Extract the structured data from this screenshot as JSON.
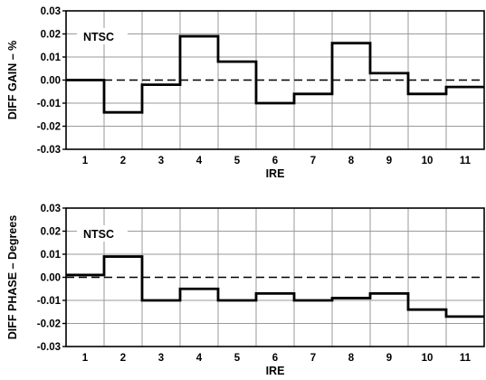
{
  "chart_data": [
    {
      "type": "line",
      "step": true,
      "x": [
        "1",
        "2",
        "3",
        "4",
        "5",
        "6",
        "7",
        "8",
        "9",
        "10",
        "11"
      ],
      "series": [
        {
          "values": [
            0.0,
            -0.014,
            -0.002,
            0.019,
            0.008,
            -0.01,
            -0.006,
            0.016,
            0.003,
            -0.006,
            -0.003
          ]
        }
      ],
      "annotation": "NTSC",
      "xlabel": "IRE",
      "ylabel": "DIFF GAIN – %",
      "ylim": [
        -0.03,
        0.03
      ],
      "yticks": [
        "0.03",
        "0.02",
        "0.01",
        "0.00",
        "-0.01",
        "-0.02",
        "-0.03"
      ],
      "reference_line": 0.0,
      "grid": true
    },
    {
      "type": "line",
      "step": true,
      "x": [
        "1",
        "2",
        "3",
        "4",
        "5",
        "6",
        "7",
        "8",
        "9",
        "10",
        "11"
      ],
      "series": [
        {
          "values": [
            0.001,
            0.009,
            -0.01,
            -0.005,
            -0.01,
            -0.007,
            -0.01,
            -0.009,
            -0.007,
            -0.014,
            -0.017
          ]
        }
      ],
      "annotation": "NTSC",
      "xlabel": "IRE",
      "ylabel": "DIFF PHASE – Degrees",
      "ylim": [
        -0.03,
        0.03
      ],
      "yticks": [
        "0.03",
        "0.02",
        "0.01",
        "0.00",
        "-0.01",
        "-0.02",
        "-0.03"
      ],
      "reference_line": 0.0,
      "grid": true
    }
  ]
}
